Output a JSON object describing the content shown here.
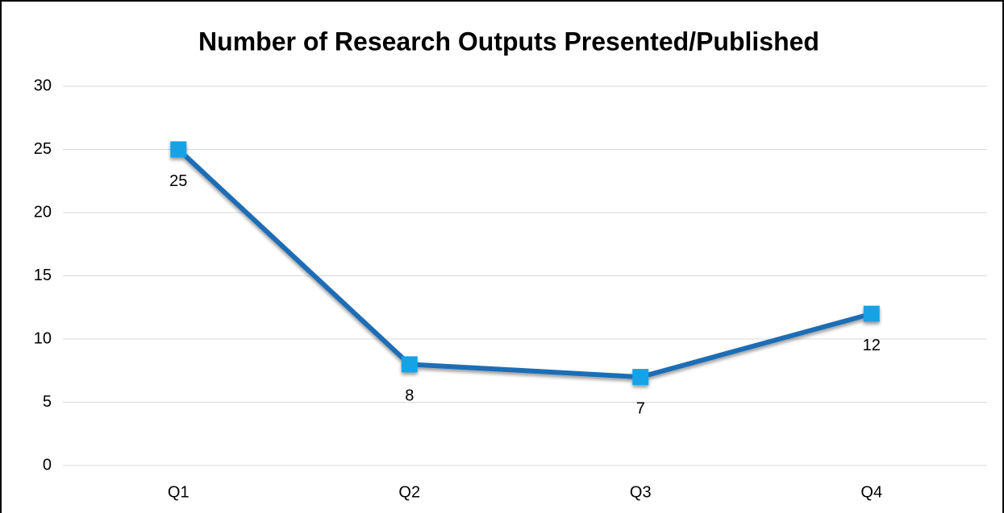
{
  "chart_data": {
    "type": "line",
    "title": "Number of Research Outputs Presented/Published",
    "categories": [
      "Q1",
      "Q2",
      "Q3",
      "Q4"
    ],
    "series": [
      {
        "name": "Research Outputs",
        "color": "#1f6db5",
        "marker_color": "#19a3e6",
        "values": [
          25,
          8,
          7,
          12
        ]
      }
    ],
    "ylim": [
      0,
      30
    ],
    "yticks": [
      0,
      5,
      10,
      15,
      20,
      25,
      30
    ],
    "grid": true
  }
}
